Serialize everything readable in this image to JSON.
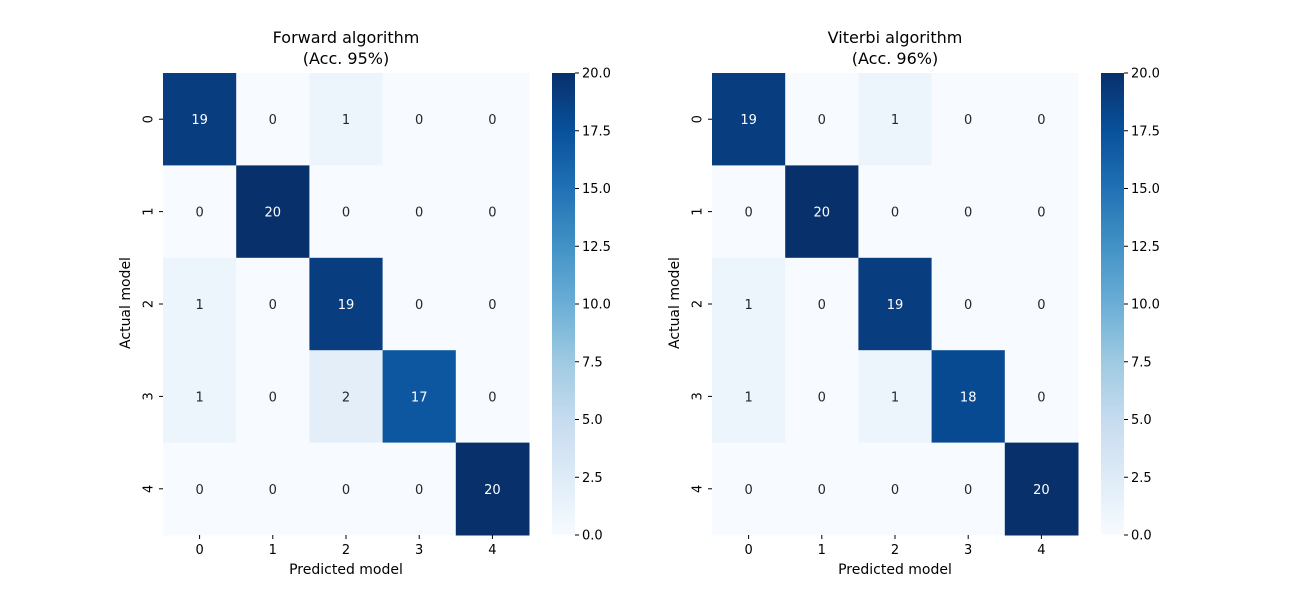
{
  "figure": {
    "background": "#ffffff"
  },
  "chart_data": [
    {
      "type": "heatmap",
      "title": "Forward algorithm",
      "subtitle": "(Acc. 95%)",
      "xlabel": "Predicted model",
      "ylabel": "Actual model",
      "x_categories": [
        "0",
        "1",
        "2",
        "3",
        "4"
      ],
      "y_categories": [
        "0",
        "1",
        "2",
        "3",
        "4"
      ],
      "matrix": [
        [
          19,
          0,
          1,
          0,
          0
        ],
        [
          0,
          20,
          0,
          0,
          0
        ],
        [
          1,
          0,
          19,
          0,
          0
        ],
        [
          1,
          0,
          2,
          17,
          0
        ],
        [
          0,
          0,
          0,
          0,
          20
        ]
      ],
      "colorbar": {
        "colormap": "Blues",
        "range": [
          0,
          20
        ],
        "ticks": [
          "0.0",
          "2.5",
          "5.0",
          "7.5",
          "10.0",
          "12.5",
          "15.0",
          "17.5",
          "20.0"
        ]
      },
      "annotations": true
    },
    {
      "type": "heatmap",
      "title": "Viterbi algorithm",
      "subtitle": "(Acc. 96%)",
      "xlabel": "Predicted model",
      "ylabel": "Actual model",
      "x_categories": [
        "0",
        "1",
        "2",
        "3",
        "4"
      ],
      "y_categories": [
        "0",
        "1",
        "2",
        "3",
        "4"
      ],
      "matrix": [
        [
          19,
          0,
          1,
          0,
          0
        ],
        [
          0,
          20,
          0,
          0,
          0
        ],
        [
          1,
          0,
          19,
          0,
          0
        ],
        [
          1,
          0,
          1,
          18,
          0
        ],
        [
          0,
          0,
          0,
          0,
          20
        ]
      ],
      "colorbar": {
        "colormap": "Blues",
        "range": [
          0,
          20
        ],
        "ticks": [
          "0.0",
          "2.5",
          "5.0",
          "7.5",
          "10.0",
          "12.5",
          "15.0",
          "17.5",
          "20.0"
        ]
      },
      "annotations": true
    }
  ]
}
